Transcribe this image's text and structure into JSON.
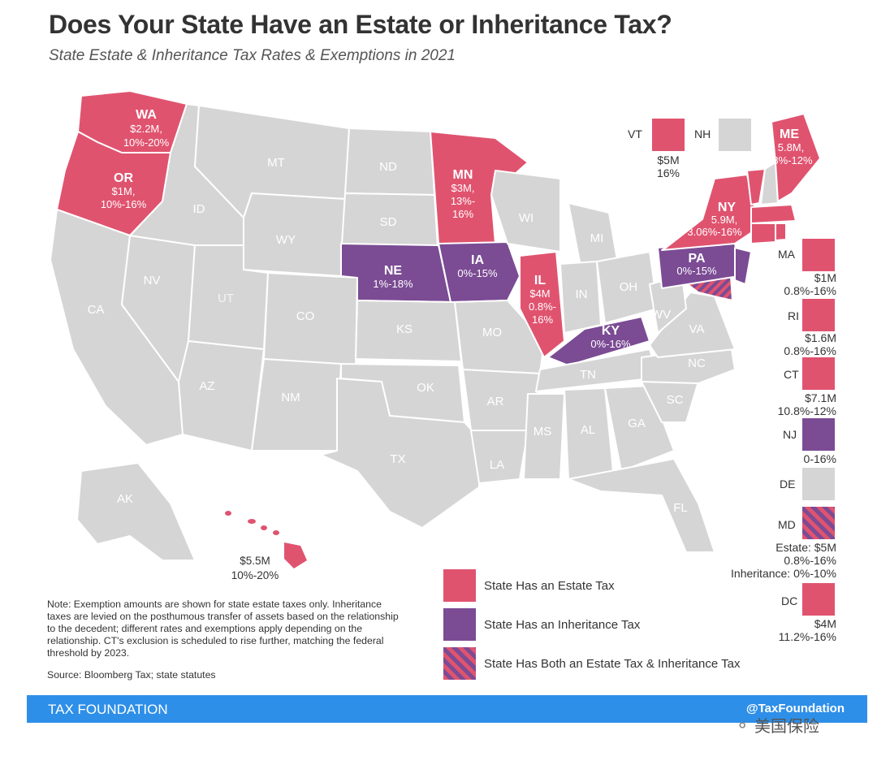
{
  "header": {
    "title": "Does Your State Have an Estate or Inheritance Tax?",
    "subtitle": "State Estate & Inheritance Tax Rates & Exemptions in 2021"
  },
  "colors": {
    "estate": "#e0536f",
    "inheritance": "#7b4b94",
    "none": "#d5d5d5"
  },
  "map_labels": {
    "wa": {
      "abbr": "WA",
      "l1": "$2.2M,",
      "l2": "10%-20%"
    },
    "or": {
      "abbr": "OR",
      "l1": "$1M,",
      "l2": "10%-16%"
    },
    "mn": {
      "abbr": "MN",
      "l1": "$3M,",
      "l2": "13%-",
      "l3": "16%"
    },
    "ne": {
      "abbr": "NE",
      "l1": "1%-18%"
    },
    "ia": {
      "abbr": "IA",
      "l1": "0%-15%"
    },
    "il": {
      "abbr": "IL",
      "l1": "$4M",
      "l2": "0.8%-",
      "l3": "16%"
    },
    "ky": {
      "abbr": "KY",
      "l1": "0%-16%"
    },
    "pa": {
      "abbr": "PA",
      "l1": "0%-15%"
    },
    "ny": {
      "abbr": "NY",
      "l1": "5.9M,",
      "l2": "3.06%-16%"
    },
    "me": {
      "abbr": "ME",
      "l1": "5.8M,",
      "l2": "8%-12%"
    },
    "plain": [
      "MT",
      "ND",
      "SD",
      "ID",
      "WY",
      "NV",
      "UT",
      "CA",
      "CO",
      "KS",
      "MO",
      "AZ",
      "NM",
      "OK",
      "AR",
      "TX",
      "LA",
      "MS",
      "AL",
      "GA",
      "SC",
      "NC",
      "TN",
      "VA",
      "WV",
      "OH",
      "IN",
      "MI",
      "WI",
      "FL",
      "AK"
    ],
    "hi": {
      "l1": "$5.5M",
      "l2": "10%-20%"
    }
  },
  "side_states": {
    "vt": {
      "abbr": "VT",
      "l1": "$5M",
      "l2": "16%"
    },
    "nh": {
      "abbr": "NH"
    },
    "ma": {
      "abbr": "MA",
      "l1": "$1M",
      "l2": "0.8%-16%"
    },
    "ri": {
      "abbr": "RI",
      "l1": "$1.6M",
      "l2": "0.8%-16%"
    },
    "ct": {
      "abbr": "CT",
      "l1": "$7.1M",
      "l2": "10.8%-12%"
    },
    "nj": {
      "abbr": "NJ",
      "l1": "0-16%"
    },
    "de": {
      "abbr": "DE"
    },
    "md": {
      "abbr": "MD",
      "l1": "Estate: $5M",
      "l2": "0.8%-16%",
      "l3": "Inheritance: 0%-10%"
    },
    "dc": {
      "abbr": "DC",
      "l1": "$4M",
      "l2": "11.2%-16%"
    }
  },
  "legend": {
    "estate": "State Has an Estate Tax",
    "inheritance": "State Has an Inheritance Tax",
    "both": "State Has Both an Estate Tax & Inheritance Tax"
  },
  "note": "Note: Exemption amounts are shown for state estate taxes only. Inheritance taxes are levied on the posthumous transfer of assets based on the relationship to the decedent; different rates and exemptions apply depending on the relationship. CT's exclusion is scheduled to rise further, matching the federal threshold by 2023.",
  "source": "Source: Bloomberg Tax; state statutes",
  "footer": {
    "brand": "TAX FOUNDATION",
    "handle": "@TaxFoundation"
  },
  "watermark": "美国保险"
}
